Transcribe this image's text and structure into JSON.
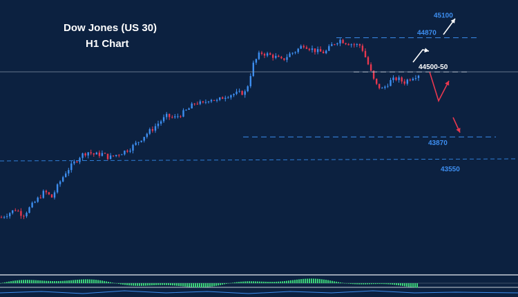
{
  "chart_data": {
    "type": "candlestick",
    "title": "Dow Jones (US 30)",
    "subtitle": "H1 Chart",
    "grid": false,
    "ylim": [
      42500,
      45250
    ],
    "levels": [
      {
        "name": "level-45100",
        "value": 45100,
        "label": "45100",
        "style": "target",
        "color": "#3d8ef0"
      },
      {
        "name": "level-44870",
        "value": 44870,
        "label": "44870",
        "style": "dashed",
        "color": "#3d8ef0"
      },
      {
        "name": "level-44500-50",
        "value": 44525,
        "label": "44500-50",
        "style": "dashed",
        "color": "#ffffff"
      },
      {
        "name": "level-43870",
        "value": 43870,
        "label": "43870",
        "style": "dashed",
        "color": "#3d8ef0"
      },
      {
        "name": "level-43550",
        "value": 43550,
        "label": "43550",
        "style": "target",
        "color": "#3d8ef0"
      }
    ],
    "trend_path": [
      43060,
      43100,
      43140,
      43080,
      43160,
      43240,
      43320,
      43260,
      43400,
      43520,
      43600,
      43680,
      43720,
      43690,
      43700,
      43660,
      43690,
      43720,
      43760,
      43820,
      43890,
      43950,
      44020,
      44080,
      44060,
      44100,
      44150,
      44220,
      44200,
      44260,
      44230,
      44280,
      44300,
      44310,
      44320,
      44600,
      44720,
      44700,
      44680,
      44640,
      44700,
      44740,
      44800,
      44760,
      44730,
      44720,
      44800,
      44850,
      44820,
      44800,
      44790,
      44600,
      44400,
      44350,
      44430,
      44460,
      44420,
      44470,
      44500
    ],
    "colors": {
      "up": "#3d8ef0",
      "down": "#e8384f",
      "background": "#0c2140",
      "oscillator_up": "#3cd47a"
    }
  }
}
